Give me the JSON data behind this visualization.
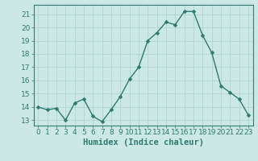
{
  "x": [
    0,
    1,
    2,
    3,
    4,
    5,
    6,
    7,
    8,
    9,
    10,
    11,
    12,
    13,
    14,
    15,
    16,
    17,
    18,
    19,
    20,
    21,
    22,
    23
  ],
  "y": [
    14.0,
    13.8,
    13.9,
    13.0,
    14.3,
    14.6,
    13.3,
    12.9,
    13.8,
    14.8,
    16.1,
    17.0,
    19.0,
    19.6,
    20.4,
    20.2,
    21.2,
    21.2,
    19.4,
    18.1,
    15.6,
    15.1,
    14.6,
    13.4
  ],
  "line_color": "#2d7a6e",
  "marker": "D",
  "marker_size": 2.5,
  "bg_color": "#cce8e5",
  "grid_color": "#b0d4d0",
  "xlabel": "Humidex (Indice chaleur)",
  "xlabel_fontsize": 7.5,
  "ylabel_ticks": [
    13,
    14,
    15,
    16,
    17,
    18,
    19,
    20,
    21
  ],
  "ylim": [
    12.6,
    21.7
  ],
  "xlim": [
    -0.5,
    23.5
  ],
  "tick_fontsize": 6.5,
  "tick_color": "#2d7a6e",
  "axis_color": "#2d7a6e",
  "line_width": 1.0
}
